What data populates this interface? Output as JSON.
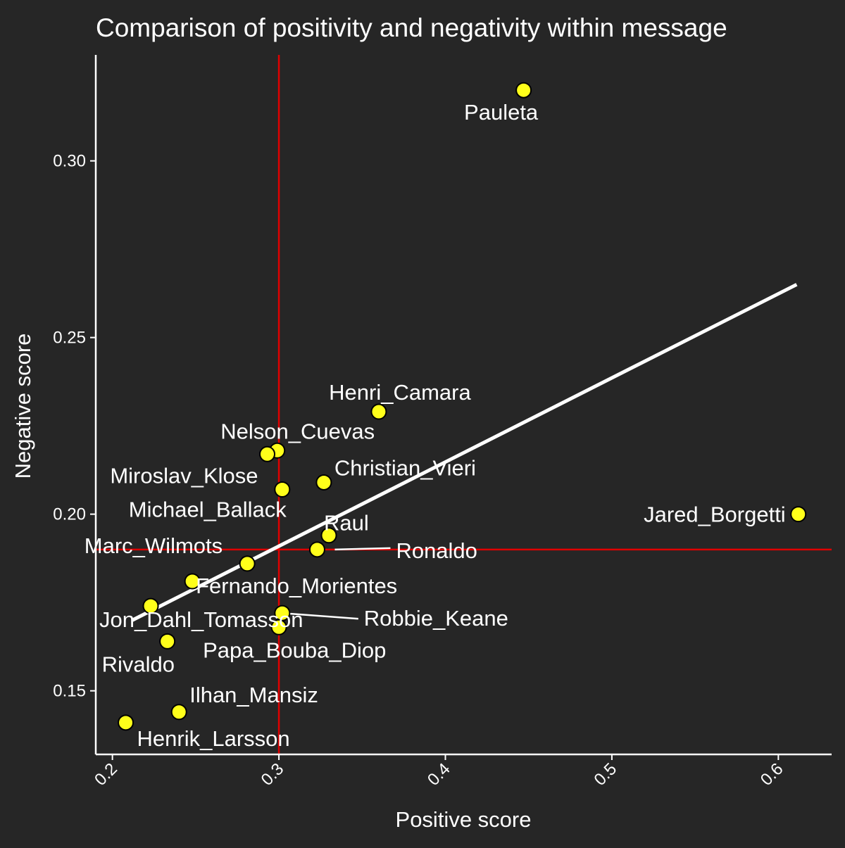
{
  "chart_data": {
    "type": "scatter",
    "title": "Comparison of positivity and negativity within message",
    "xlabel": "Positive score",
    "ylabel": "Negative score",
    "xlim": [
      0.19,
      0.632
    ],
    "ylim": [
      0.132,
      0.33
    ],
    "x_ticks": [
      0.2,
      0.3,
      0.4,
      0.5,
      0.6
    ],
    "x_tick_labels": [
      "0.2",
      "0.3",
      "0.4",
      "0.5",
      "0.6"
    ],
    "y_ticks": [
      0.15,
      0.2,
      0.25,
      0.3
    ],
    "y_tick_labels": [
      "0.15",
      "0.20",
      "0.25",
      "0.30"
    ],
    "grid": false,
    "reference_lines": {
      "x": 0.3,
      "y": 0.19,
      "color": "#e00000"
    },
    "trend_line": {
      "type": "linear",
      "x": [
        0.212,
        0.611
      ],
      "y": [
        0.17,
        0.265
      ],
      "color": "#ffffff"
    },
    "point_color": "#ffff1a",
    "points": [
      {
        "label": "Pauleta",
        "x": 0.447,
        "y": 0.32
      },
      {
        "label": "Henri_Camara",
        "x": 0.36,
        "y": 0.229
      },
      {
        "label": "Nelson_Cuevas",
        "x": 0.299,
        "y": 0.218
      },
      {
        "label": "Miroslav_Klose",
        "x": 0.293,
        "y": 0.217
      },
      {
        "label": "Christian_Vieri",
        "x": 0.327,
        "y": 0.209
      },
      {
        "label": "Michael_Ballack",
        "x": 0.302,
        "y": 0.207
      },
      {
        "label": "Jared_Borgetti",
        "x": 0.612,
        "y": 0.2
      },
      {
        "label": "Raul",
        "x": 0.33,
        "y": 0.194
      },
      {
        "label": "Ronaldo",
        "x": 0.323,
        "y": 0.19
      },
      {
        "label": "Marc_Wilmots",
        "x": 0.281,
        "y": 0.186
      },
      {
        "label": "Fernando_Morientes",
        "x": 0.248,
        "y": 0.181
      },
      {
        "label": "Jon_Dahl_Tomasson",
        "x": 0.223,
        "y": 0.174
      },
      {
        "label": "Robbie_Keane",
        "x": 0.302,
        "y": 0.172
      },
      {
        "label": "Papa_Bouba_Diop",
        "x": 0.3,
        "y": 0.168
      },
      {
        "label": "Rivaldo",
        "x": 0.233,
        "y": 0.164
      },
      {
        "label": "Ilhan_Mansiz",
        "x": 0.24,
        "y": 0.144
      },
      {
        "label": "Henrik_Larsson",
        "x": 0.208,
        "y": 0.141
      }
    ]
  }
}
